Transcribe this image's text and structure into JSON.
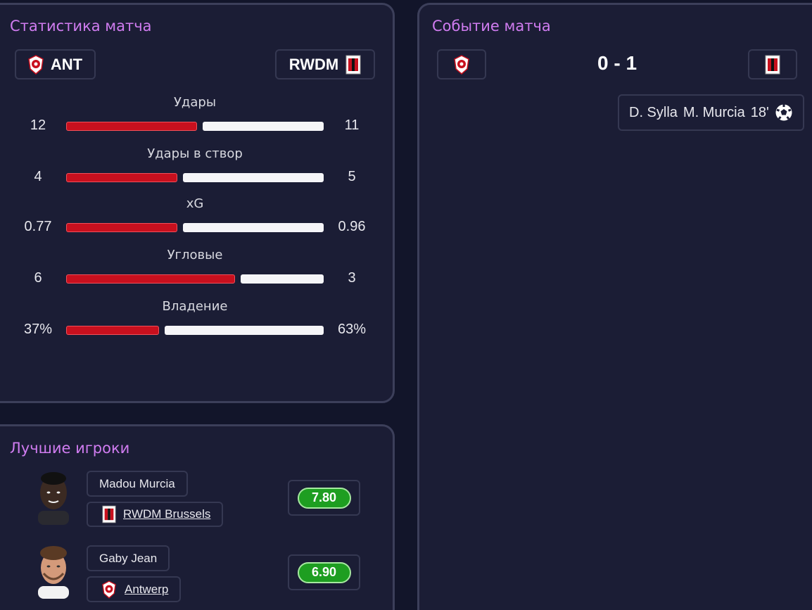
{
  "stats_panel": {
    "title": "Статистика матча",
    "home_team": "ANT",
    "away_team": "RWDM",
    "rows": [
      {
        "label": "Удары",
        "home": "12",
        "away": "11",
        "home_share": 0.52
      },
      {
        "label": "Удары в створ",
        "home": "4",
        "away": "5",
        "home_share": 0.44
      },
      {
        "label": "xG",
        "home": "0.77",
        "away": "0.96",
        "home_share": 0.44
      },
      {
        "label": "Угловые",
        "home": "6",
        "away": "3",
        "home_share": 0.67
      },
      {
        "label": "Владение",
        "home": "37%",
        "away": "63%",
        "home_share": 0.37
      }
    ]
  },
  "events_panel": {
    "title": "Событие матча",
    "score": "0 - 1",
    "events": [
      {
        "assist": "D. Sylla",
        "scorer": "M. Murcia",
        "minute": "18'",
        "icon": "soccer-ball-icon"
      }
    ]
  },
  "best_players": {
    "title": "Лучшие игроки",
    "players": [
      {
        "name": "Madou Murcia",
        "team": "RWDM Brussels",
        "rating": "7.80",
        "crest": "rwdm-crest-icon"
      },
      {
        "name": "Gaby Jean",
        "team": "Antwerp",
        "rating": "6.90",
        "crest": "antwerp-crest-icon"
      }
    ]
  },
  "colors": {
    "accent": "#d07cf0",
    "home_bar": "#c8101e",
    "away_bar": "#f5f5f8",
    "rating": "#1e9e21"
  }
}
